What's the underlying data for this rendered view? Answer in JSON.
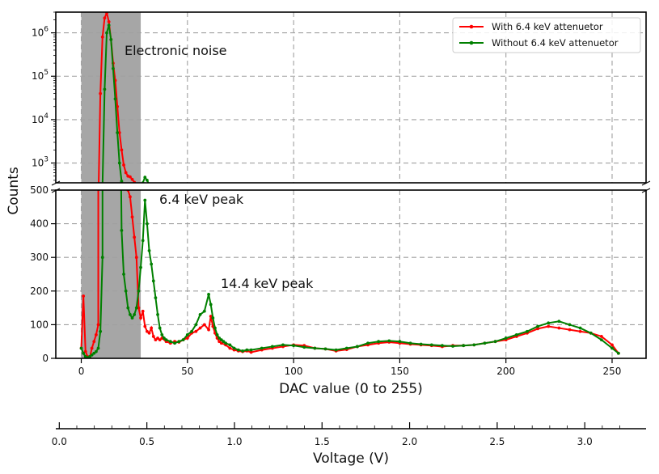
{
  "chart_data": {
    "type": "line",
    "ylabel": "Counts",
    "xlabel": "DAC value (0 to 255)",
    "secondary_xlabel": "Voltage (V)",
    "xlim": [
      -12,
      266
    ],
    "x_ticks": [
      "0",
      "50",
      "100",
      "150",
      "200",
      "250"
    ],
    "x_tick_values": [
      0,
      50,
      100,
      150,
      200,
      250
    ],
    "secondary_xlim": [
      -0.02,
      3.35
    ],
    "secondary_ticks": [
      "0.0",
      "0.5",
      "1.0",
      "1.5",
      "2.0",
      "2.5",
      "3.0"
    ],
    "secondary_tick_values": [
      0.0,
      0.5,
      1.0,
      1.5,
      2.0,
      2.5,
      3.0
    ],
    "upper_panel": {
      "scale": "log",
      "ylim": [
        350,
        3000000
      ],
      "y_ticks": [
        "10^3",
        "10^4",
        "10^5",
        "10^6"
      ],
      "y_tick_values": [
        1000,
        10000,
        100000,
        1000000
      ]
    },
    "lower_panel": {
      "scale": "linear",
      "ylim": [
        0,
        500
      ],
      "y_ticks": [
        "0",
        "100",
        "200",
        "300",
        "400",
        "500"
      ],
      "y_tick_values": [
        0,
        100,
        200,
        300,
        400,
        500
      ]
    },
    "shaded_region": {
      "x_from": 0,
      "x_to": 28,
      "color": "#a6a6a6"
    },
    "grid": true,
    "legend_position": "top-right",
    "annotations": [
      {
        "text": "Electronic noise",
        "x": 20,
        "y": 400000
      },
      {
        "text": "6.4 keV peak",
        "x": 36,
        "y": 470
      },
      {
        "text": "14.4 keV peak",
        "x": 65,
        "y": 218
      }
    ],
    "series": [
      {
        "name": "With 6.4 keV attenuetor",
        "color": "#ff0000",
        "x": [
          0,
          1,
          2,
          3,
          4,
          5,
          6,
          7,
          8,
          9,
          10,
          11,
          12,
          13,
          14,
          15,
          16,
          17,
          18,
          19,
          20,
          21,
          22,
          23,
          24,
          25,
          26,
          27,
          28,
          29,
          30,
          31,
          32,
          33,
          34,
          35,
          36,
          37,
          38,
          40,
          42,
          44,
          46,
          48,
          50,
          52,
          54,
          56,
          58,
          60,
          61,
          62,
          63,
          64,
          65,
          66,
          68,
          70,
          72,
          74,
          76,
          78,
          80,
          85,
          90,
          95,
          100,
          105,
          110,
          115,
          120,
          125,
          130,
          135,
          140,
          145,
          150,
          155,
          160,
          165,
          170,
          175,
          180,
          185,
          190,
          195,
          200,
          205,
          210,
          215,
          220,
          225,
          230,
          235,
          240,
          245,
          250,
          253
        ],
        "y": [
          30,
          185,
          20,
          5,
          2,
          30,
          50,
          70,
          100,
          40000,
          800000,
          2200000,
          2900000,
          1800000,
          700000,
          200000,
          80000,
          20000,
          5000,
          2000,
          900,
          600,
          500,
          480,
          420,
          360,
          300,
          150,
          120,
          140,
          95,
          80,
          75,
          90,
          65,
          55,
          60,
          55,
          60,
          50,
          45,
          50,
          48,
          55,
          60,
          75,
          80,
          90,
          100,
          85,
          125,
          95,
          75,
          60,
          50,
          45,
          40,
          30,
          25,
          22,
          20,
          22,
          18,
          25,
          30,
          35,
          40,
          38,
          30,
          28,
          22,
          26,
          35,
          40,
          45,
          48,
          45,
          42,
          40,
          38,
          35,
          38,
          38,
          40,
          45,
          50,
          55,
          65,
          75,
          88,
          95,
          90,
          85,
          80,
          75,
          65,
          40,
          15
        ]
      },
      {
        "name": "Without 6.4 keV attenuetor",
        "color": "#008000",
        "x": [
          0,
          1,
          2,
          3,
          4,
          5,
          6,
          7,
          8,
          9,
          10,
          11,
          12,
          13,
          14,
          15,
          16,
          17,
          18,
          19,
          20,
          21,
          22,
          23,
          24,
          25,
          26,
          27,
          28,
          29,
          30,
          31,
          32,
          33,
          34,
          35,
          36,
          37,
          38,
          39,
          40,
          42,
          44,
          46,
          48,
          50,
          52,
          54,
          56,
          58,
          60,
          61,
          62,
          63,
          64,
          65,
          66,
          67,
          68,
          70,
          72,
          74,
          76,
          78,
          80,
          85,
          90,
          95,
          100,
          105,
          110,
          115,
          120,
          125,
          130,
          135,
          140,
          145,
          150,
          155,
          160,
          165,
          170,
          175,
          180,
          185,
          190,
          195,
          200,
          205,
          210,
          215,
          220,
          225,
          230,
          235,
          240,
          245,
          250,
          253
        ],
        "y": [
          30,
          15,
          5,
          2,
          5,
          10,
          15,
          20,
          30,
          80,
          300,
          50000,
          1000000,
          1500000,
          700000,
          150000,
          30000,
          5000,
          1000,
          380,
          250,
          200,
          150,
          130,
          120,
          130,
          150,
          200,
          270,
          350,
          470,
          400,
          320,
          280,
          230,
          180,
          130,
          90,
          70,
          60,
          55,
          50,
          45,
          50,
          55,
          70,
          80,
          100,
          130,
          140,
          190,
          160,
          120,
          90,
          70,
          60,
          55,
          50,
          45,
          40,
          30,
          25,
          22,
          25,
          25,
          30,
          35,
          40,
          38,
          33,
          30,
          28,
          25,
          30,
          35,
          45,
          50,
          52,
          50,
          45,
          42,
          40,
          38,
          36,
          38,
          40,
          45,
          50,
          60,
          70,
          80,
          95,
          105,
          110,
          100,
          90,
          75,
          55,
          30,
          15
        ]
      }
    ]
  }
}
